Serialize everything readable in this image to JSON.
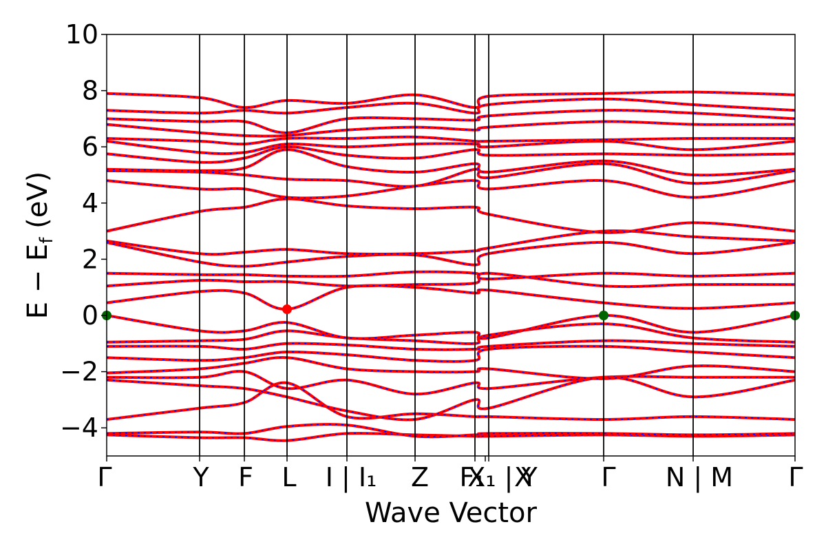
{
  "chart_data": {
    "type": "line",
    "title": "",
    "xlabel": "Wave Vector",
    "ylabel": "E − E_f (eV)",
    "ylabel_parts": {
      "main": "E − E",
      "sub": "f",
      "unit": " (eV)"
    },
    "ylim": [
      -5,
      10
    ],
    "y_ticks": [
      -4,
      -2,
      0,
      2,
      4,
      6,
      8,
      10
    ],
    "x_range": [
      0,
      1
    ],
    "high_symmetry_points": [
      {
        "label": "Γ",
        "x": 0.0
      },
      {
        "label": "Y",
        "x": 0.135
      },
      {
        "label": "F",
        "x": 0.2
      },
      {
        "label": "L",
        "x": 0.262
      },
      {
        "label": "I | I₁",
        "x": 0.349
      },
      {
        "label": "Z",
        "x": 0.448
      },
      {
        "label": "F₁",
        "x": 0.535
      },
      {
        "label": "X₁ | Y",
        "x": 0.555
      },
      {
        "label": "X",
        "x": 0.55
      },
      {
        "label": "Γ",
        "x": 0.722
      },
      {
        "label": "N | M",
        "x": 0.852
      },
      {
        "label": "Γ",
        "x": 1.0
      }
    ],
    "band_colors": {
      "primary": "#ff0000",
      "dashed_overlay": "#0000ff"
    },
    "marker_colors": {
      "vbm": "#006400",
      "cbm": "#ff0000"
    },
    "markers": [
      {
        "type": "vbm",
        "x": 0.0,
        "y": 0.0
      },
      {
        "type": "cbm",
        "x": 0.262,
        "y": 0.22
      },
      {
        "type": "vbm",
        "x": 0.722,
        "y": 0.0
      },
      {
        "type": "vbm",
        "x": 1.0,
        "y": 0.0
      }
    ],
    "bands_approx": [
      {
        "x": [
          0,
          0.135,
          0.2,
          0.262,
          0.349,
          0.448,
          0.535,
          0.555,
          0.722,
          0.852,
          1.0
        ],
        "y": [
          -4.25,
          -4.35,
          -4.35,
          -4.45,
          -4.2,
          -4.25,
          -4.3,
          -4.3,
          -4.25,
          -4.3,
          -4.25
        ]
      },
      {
        "x": [
          0,
          0.135,
          0.2,
          0.262,
          0.349,
          0.448,
          0.535,
          0.555,
          0.722,
          0.852,
          1.0
        ],
        "y": [
          -4.2,
          -4.15,
          -4.2,
          -3.95,
          -3.9,
          -4.3,
          -4.25,
          -4.2,
          -4.2,
          -4.25,
          -4.2
        ]
      },
      {
        "x": [
          0,
          0.135,
          0.2,
          0.262,
          0.349,
          0.448,
          0.535,
          0.555,
          0.722,
          0.852,
          1.0
        ],
        "y": [
          -3.7,
          -3.3,
          -3.1,
          -2.4,
          -3.6,
          -3.5,
          -3.6,
          -3.6,
          -3.7,
          -3.6,
          -3.7
        ]
      },
      {
        "x": [
          0,
          0.135,
          0.2,
          0.262,
          0.349,
          0.448,
          0.535,
          0.555,
          0.722,
          0.852,
          1.0
        ],
        "y": [
          -2.3,
          -2.5,
          -2.6,
          -2.9,
          -3.4,
          -3.7,
          -3.0,
          -3.3,
          -2.2,
          -2.9,
          -2.3
        ]
      },
      {
        "x": [
          0,
          0.135,
          0.2,
          0.262,
          0.349,
          0.448,
          0.535,
          0.555,
          0.722,
          0.852,
          1.0
        ],
        "y": [
          -2.2,
          -2.2,
          -2.0,
          -2.6,
          -2.3,
          -2.8,
          -2.4,
          -2.6,
          -2.2,
          -2.2,
          -2.2
        ]
      },
      {
        "x": [
          0,
          0.135,
          0.2,
          0.262,
          0.349,
          0.448,
          0.535,
          0.555,
          0.722,
          0.852,
          1.0
        ],
        "y": [
          -2.05,
          -1.9,
          -1.7,
          -1.5,
          -1.9,
          -2.0,
          -2.0,
          -1.9,
          -2.25,
          -1.8,
          -2.0
        ]
      },
      {
        "x": [
          0,
          0.135,
          0.2,
          0.262,
          0.349,
          0.448,
          0.535,
          0.555,
          0.722,
          0.852,
          1.0
        ],
        "y": [
          -1.5,
          -1.6,
          -1.5,
          -1.3,
          -1.4,
          -1.6,
          -1.6,
          -1.2,
          -1.1,
          -1.3,
          -1.5
        ]
      },
      {
        "x": [
          0,
          0.135,
          0.2,
          0.262,
          0.349,
          0.448,
          0.535,
          0.555,
          0.722,
          0.852,
          1.0
        ],
        "y": [
          -1.1,
          -1.1,
          -1.2,
          -1.0,
          -1.05,
          -1.2,
          -1.2,
          -1.1,
          -0.9,
          -1.0,
          -1.1
        ]
      },
      {
        "x": [
          0,
          0.135,
          0.2,
          0.262,
          0.349,
          0.448,
          0.535,
          0.555,
          0.722,
          0.852,
          1.0
        ],
        "y": [
          -0.95,
          -0.9,
          -0.85,
          -0.55,
          -0.8,
          -0.9,
          -1.0,
          -0.7,
          -0.3,
          -0.8,
          -0.95
        ]
      },
      {
        "x": [
          0,
          0.135,
          0.2,
          0.262,
          0.349,
          0.448,
          0.535,
          0.555,
          0.722,
          0.852,
          1.0
        ],
        "y": [
          0.0,
          -0.55,
          -0.55,
          -0.25,
          -0.8,
          -0.7,
          -0.6,
          -0.8,
          0.0,
          -0.6,
          0.0
        ]
      },
      {
        "x": [
          0,
          0.135,
          0.2,
          0.262,
          0.349,
          0.448,
          0.535,
          0.555,
          0.722,
          0.852,
          1.0
        ],
        "y": [
          0.45,
          0.85,
          0.8,
          0.22,
          1.0,
          1.0,
          0.8,
          0.9,
          0.45,
          0.25,
          0.45
        ]
      },
      {
        "x": [
          0,
          0.135,
          0.2,
          0.262,
          0.349,
          0.448,
          0.535,
          0.555,
          0.722,
          0.852,
          1.0
        ],
        "y": [
          1.05,
          1.25,
          1.2,
          1.2,
          1.05,
          1.1,
          1.15,
          1.5,
          1.05,
          1.1,
          1.1
        ]
      },
      {
        "x": [
          0,
          0.135,
          0.2,
          0.262,
          0.349,
          0.448,
          0.535,
          0.555,
          0.722,
          0.852,
          1.0
        ],
        "y": [
          1.5,
          1.45,
          1.45,
          1.4,
          1.4,
          1.55,
          1.5,
          1.3,
          1.5,
          1.4,
          1.5
        ]
      },
      {
        "x": [
          0,
          0.135,
          0.2,
          0.262,
          0.349,
          0.448,
          0.535,
          0.555,
          0.722,
          0.852,
          1.0
        ],
        "y": [
          2.6,
          1.9,
          1.75,
          1.9,
          2.1,
          2.15,
          1.8,
          2.2,
          2.6,
          2.2,
          2.6
        ]
      },
      {
        "x": [
          0,
          0.135,
          0.2,
          0.262,
          0.349,
          0.448,
          0.535,
          0.555,
          0.722,
          0.852,
          1.0
        ],
        "y": [
          2.65,
          2.2,
          2.25,
          2.35,
          2.2,
          2.2,
          2.3,
          2.4,
          3.0,
          2.8,
          2.65
        ]
      },
      {
        "x": [
          0,
          0.135,
          0.2,
          0.262,
          0.349,
          0.448,
          0.535,
          0.555,
          0.722,
          0.852,
          1.0
        ],
        "y": [
          3.0,
          3.7,
          3.85,
          4.15,
          3.9,
          3.8,
          3.85,
          3.6,
          2.95,
          3.3,
          3.0
        ]
      },
      {
        "x": [
          0,
          0.135,
          0.2,
          0.262,
          0.349,
          0.448,
          0.535,
          0.555,
          0.722,
          0.852,
          1.0
        ],
        "y": [
          4.8,
          4.5,
          4.5,
          4.2,
          4.25,
          4.6,
          4.8,
          4.5,
          4.8,
          4.2,
          4.8
        ]
      },
      {
        "x": [
          0,
          0.135,
          0.2,
          0.262,
          0.349,
          0.448,
          0.535,
          0.555,
          0.722,
          0.852,
          1.0
        ],
        "y": [
          5.15,
          5.1,
          5.0,
          4.85,
          4.8,
          4.6,
          5.2,
          4.9,
          5.4,
          4.7,
          5.15
        ]
      },
      {
        "x": [
          0,
          0.135,
          0.2,
          0.262,
          0.349,
          0.448,
          0.535,
          0.555,
          0.722,
          0.852,
          1.0
        ],
        "y": [
          5.2,
          5.15,
          5.25,
          5.9,
          5.3,
          5.1,
          5.4,
          5.1,
          5.5,
          5.0,
          5.2
        ]
      },
      {
        "x": [
          0,
          0.135,
          0.2,
          0.262,
          0.349,
          0.448,
          0.535,
          0.555,
          0.722,
          0.852,
          1.0
        ],
        "y": [
          5.75,
          5.45,
          5.6,
          6.0,
          5.7,
          5.6,
          5.9,
          5.7,
          5.75,
          5.7,
          5.75
        ]
      },
      {
        "x": [
          0,
          0.135,
          0.2,
          0.262,
          0.349,
          0.448,
          0.535,
          0.555,
          0.722,
          0.852,
          1.0
        ],
        "y": [
          6.2,
          5.8,
          5.8,
          6.1,
          6.0,
          6.1,
          6.1,
          6.0,
          6.2,
          5.9,
          6.2
        ]
      },
      {
        "x": [
          0,
          0.135,
          0.2,
          0.262,
          0.349,
          0.448,
          0.535,
          0.555,
          0.722,
          0.852,
          1.0
        ],
        "y": [
          6.3,
          6.2,
          6.1,
          6.3,
          6.3,
          6.35,
          6.2,
          6.2,
          6.25,
          6.3,
          6.3
        ]
      },
      {
        "x": [
          0,
          0.135,
          0.2,
          0.262,
          0.349,
          0.448,
          0.535,
          0.555,
          0.722,
          0.852,
          1.0
        ],
        "y": [
          6.8,
          6.5,
          6.4,
          6.4,
          6.6,
          6.7,
          6.6,
          6.7,
          6.9,
          6.8,
          6.8
        ]
      },
      {
        "x": [
          0,
          0.135,
          0.2,
          0.262,
          0.349,
          0.448,
          0.535,
          0.555,
          0.722,
          0.852,
          1.0
        ],
        "y": [
          7.0,
          6.9,
          6.9,
          6.5,
          7.0,
          7.0,
          6.95,
          7.1,
          7.3,
          7.2,
          7.0
        ]
      },
      {
        "x": [
          0,
          0.135,
          0.2,
          0.262,
          0.349,
          0.448,
          0.535,
          0.555,
          0.722,
          0.852,
          1.0
        ],
        "y": [
          7.3,
          7.2,
          7.3,
          7.2,
          7.4,
          7.55,
          7.2,
          7.5,
          7.7,
          7.5,
          7.3
        ]
      },
      {
        "x": [
          0,
          0.135,
          0.2,
          0.262,
          0.349,
          0.448,
          0.535,
          0.555,
          0.722,
          0.852,
          1.0
        ],
        "y": [
          7.9,
          7.75,
          7.4,
          7.65,
          7.55,
          7.85,
          7.4,
          7.8,
          7.9,
          7.95,
          7.85
        ]
      }
    ]
  }
}
